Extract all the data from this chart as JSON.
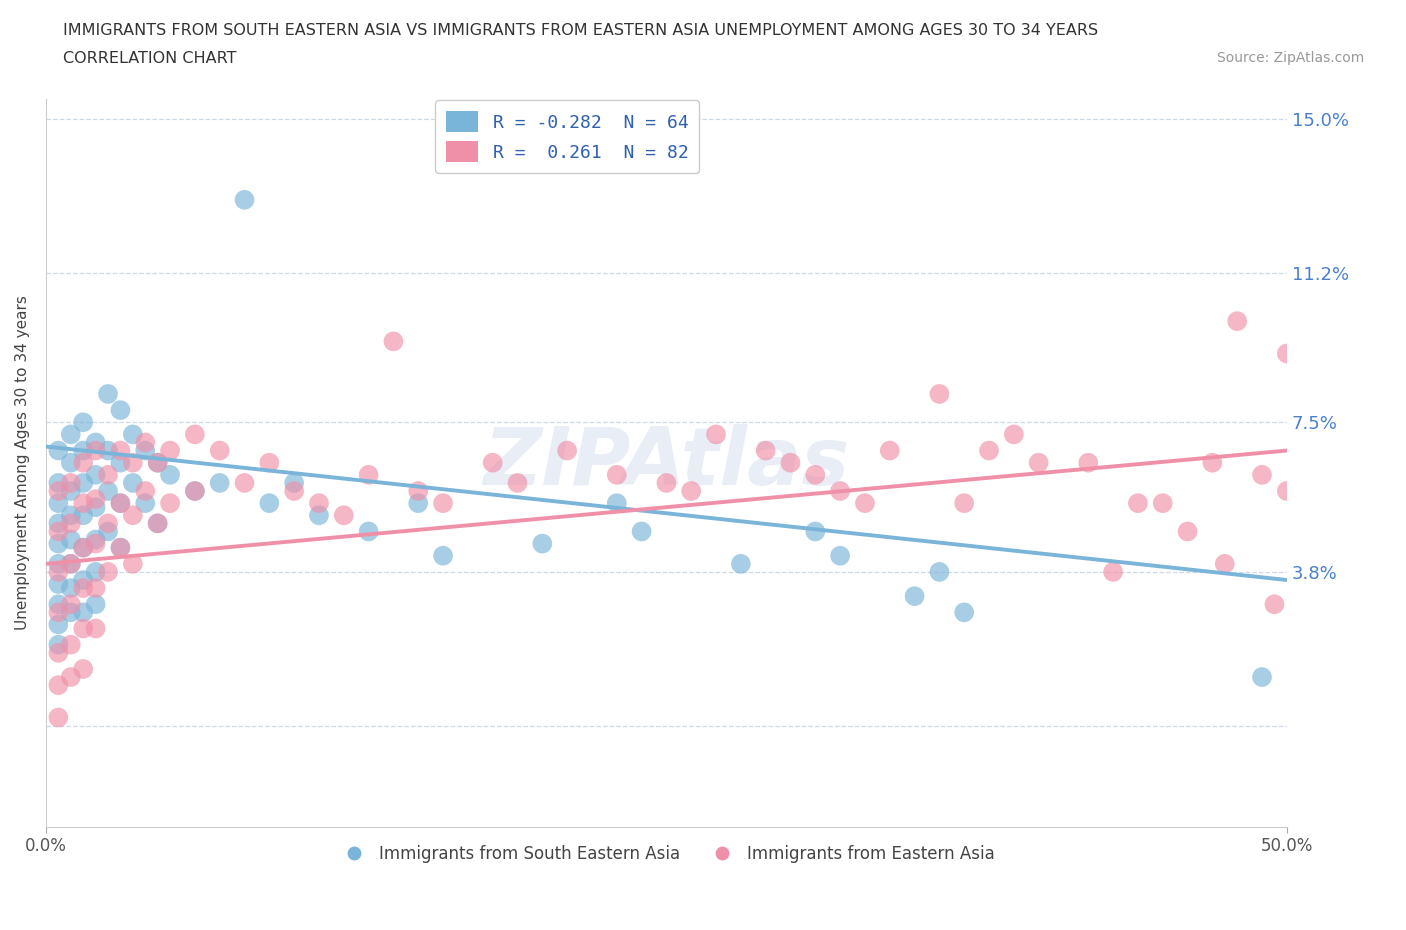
{
  "title_line1": "IMMIGRANTS FROM SOUTH EASTERN ASIA VS IMMIGRANTS FROM EASTERN ASIA UNEMPLOYMENT AMONG AGES 30 TO 34 YEARS",
  "title_line2": "CORRELATION CHART",
  "source": "Source: ZipAtlas.com",
  "ylabel": "Unemployment Among Ages 30 to 34 years",
  "xmin": 0.0,
  "xmax": 0.5,
  "ymin": -0.025,
  "ymax": 0.155,
  "yticks": [
    0.0,
    0.038,
    0.075,
    0.112,
    0.15
  ],
  "ytick_labels": [
    "",
    "3.8%",
    "7.5%",
    "11.2%",
    "15.0%"
  ],
  "watermark": "ZIPAtlas",
  "legend_label1": "Immigrants from South Eastern Asia",
  "legend_label2": "Immigrants from Eastern Asia",
  "color_blue": "#7ab4d8",
  "color_pink": "#f090a8",
  "trendline_blue": [
    0.0,
    0.069,
    0.5,
    0.036
  ],
  "trendline_pink": [
    0.0,
    0.04,
    0.5,
    0.068
  ],
  "blue_scatter": [
    [
      0.005,
      0.068
    ],
    [
      0.005,
      0.06
    ],
    [
      0.005,
      0.055
    ],
    [
      0.005,
      0.05
    ],
    [
      0.005,
      0.045
    ],
    [
      0.005,
      0.04
    ],
    [
      0.005,
      0.035
    ],
    [
      0.005,
      0.03
    ],
    [
      0.005,
      0.025
    ],
    [
      0.005,
      0.02
    ],
    [
      0.01,
      0.072
    ],
    [
      0.01,
      0.065
    ],
    [
      0.01,
      0.058
    ],
    [
      0.01,
      0.052
    ],
    [
      0.01,
      0.046
    ],
    [
      0.01,
      0.04
    ],
    [
      0.01,
      0.034
    ],
    [
      0.01,
      0.028
    ],
    [
      0.015,
      0.075
    ],
    [
      0.015,
      0.068
    ],
    [
      0.015,
      0.06
    ],
    [
      0.015,
      0.052
    ],
    [
      0.015,
      0.044
    ],
    [
      0.015,
      0.036
    ],
    [
      0.015,
      0.028
    ],
    [
      0.02,
      0.07
    ],
    [
      0.02,
      0.062
    ],
    [
      0.02,
      0.054
    ],
    [
      0.02,
      0.046
    ],
    [
      0.02,
      0.038
    ],
    [
      0.02,
      0.03
    ],
    [
      0.025,
      0.082
    ],
    [
      0.025,
      0.068
    ],
    [
      0.025,
      0.058
    ],
    [
      0.025,
      0.048
    ],
    [
      0.03,
      0.078
    ],
    [
      0.03,
      0.065
    ],
    [
      0.03,
      0.055
    ],
    [
      0.03,
      0.044
    ],
    [
      0.035,
      0.072
    ],
    [
      0.035,
      0.06
    ],
    [
      0.04,
      0.068
    ],
    [
      0.04,
      0.055
    ],
    [
      0.045,
      0.065
    ],
    [
      0.045,
      0.05
    ],
    [
      0.05,
      0.062
    ],
    [
      0.06,
      0.058
    ],
    [
      0.07,
      0.06
    ],
    [
      0.08,
      0.13
    ],
    [
      0.09,
      0.055
    ],
    [
      0.1,
      0.06
    ],
    [
      0.11,
      0.052
    ],
    [
      0.13,
      0.048
    ],
    [
      0.15,
      0.055
    ],
    [
      0.16,
      0.042
    ],
    [
      0.2,
      0.045
    ],
    [
      0.23,
      0.055
    ],
    [
      0.24,
      0.048
    ],
    [
      0.28,
      0.04
    ],
    [
      0.31,
      0.048
    ],
    [
      0.32,
      0.042
    ],
    [
      0.35,
      0.032
    ],
    [
      0.36,
      0.038
    ],
    [
      0.37,
      0.028
    ],
    [
      0.49,
      0.012
    ]
  ],
  "pink_scatter": [
    [
      0.005,
      0.058
    ],
    [
      0.005,
      0.048
    ],
    [
      0.005,
      0.038
    ],
    [
      0.005,
      0.028
    ],
    [
      0.005,
      0.018
    ],
    [
      0.005,
      0.01
    ],
    [
      0.005,
      0.002
    ],
    [
      0.01,
      0.06
    ],
    [
      0.01,
      0.05
    ],
    [
      0.01,
      0.04
    ],
    [
      0.01,
      0.03
    ],
    [
      0.01,
      0.02
    ],
    [
      0.01,
      0.012
    ],
    [
      0.015,
      0.065
    ],
    [
      0.015,
      0.055
    ],
    [
      0.015,
      0.044
    ],
    [
      0.015,
      0.034
    ],
    [
      0.015,
      0.024
    ],
    [
      0.015,
      0.014
    ],
    [
      0.02,
      0.068
    ],
    [
      0.02,
      0.056
    ],
    [
      0.02,
      0.045
    ],
    [
      0.02,
      0.034
    ],
    [
      0.02,
      0.024
    ],
    [
      0.025,
      0.062
    ],
    [
      0.025,
      0.05
    ],
    [
      0.025,
      0.038
    ],
    [
      0.03,
      0.068
    ],
    [
      0.03,
      0.055
    ],
    [
      0.03,
      0.044
    ],
    [
      0.035,
      0.065
    ],
    [
      0.035,
      0.052
    ],
    [
      0.035,
      0.04
    ],
    [
      0.04,
      0.07
    ],
    [
      0.04,
      0.058
    ],
    [
      0.045,
      0.065
    ],
    [
      0.045,
      0.05
    ],
    [
      0.05,
      0.068
    ],
    [
      0.05,
      0.055
    ],
    [
      0.06,
      0.072
    ],
    [
      0.06,
      0.058
    ],
    [
      0.07,
      0.068
    ],
    [
      0.08,
      0.06
    ],
    [
      0.09,
      0.065
    ],
    [
      0.1,
      0.058
    ],
    [
      0.11,
      0.055
    ],
    [
      0.12,
      0.052
    ],
    [
      0.13,
      0.062
    ],
    [
      0.14,
      0.095
    ],
    [
      0.15,
      0.058
    ],
    [
      0.16,
      0.055
    ],
    [
      0.18,
      0.065
    ],
    [
      0.19,
      0.06
    ],
    [
      0.21,
      0.068
    ],
    [
      0.23,
      0.062
    ],
    [
      0.25,
      0.06
    ],
    [
      0.26,
      0.058
    ],
    [
      0.27,
      0.072
    ],
    [
      0.29,
      0.068
    ],
    [
      0.3,
      0.065
    ],
    [
      0.31,
      0.062
    ],
    [
      0.32,
      0.058
    ],
    [
      0.33,
      0.055
    ],
    [
      0.34,
      0.068
    ],
    [
      0.36,
      0.082
    ],
    [
      0.37,
      0.055
    ],
    [
      0.38,
      0.068
    ],
    [
      0.39,
      0.072
    ],
    [
      0.4,
      0.065
    ],
    [
      0.42,
      0.065
    ],
    [
      0.43,
      0.038
    ],
    [
      0.44,
      0.055
    ],
    [
      0.45,
      0.055
    ],
    [
      0.46,
      0.048
    ],
    [
      0.47,
      0.065
    ],
    [
      0.475,
      0.04
    ],
    [
      0.48,
      0.1
    ],
    [
      0.49,
      0.062
    ],
    [
      0.495,
      0.03
    ],
    [
      0.5,
      0.092
    ],
    [
      0.5,
      0.058
    ]
  ]
}
